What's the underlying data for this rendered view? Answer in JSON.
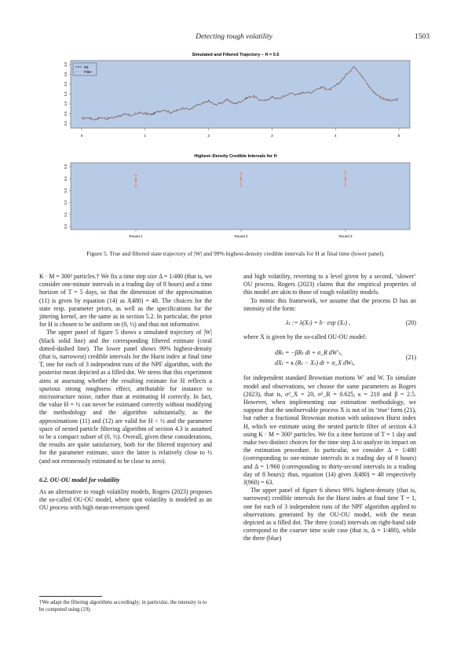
{
  "header": {
    "running_title": "Detecting rough volatility",
    "page_number": "1503"
  },
  "figure": {
    "top_panel": {
      "title": "Simulated and Filtered Trajectory – H = 0.5",
      "legend": [
        "Wt",
        "Filter"
      ],
      "x_ticks": [
        "0",
        "1",
        "2",
        "3",
        "4",
        "5"
      ],
      "y_ticks": [
        "0.0",
        "0.5",
        "1.0",
        "1.5",
        "2.0",
        "2.5",
        "3.0"
      ]
    },
    "bottom_panel": {
      "title": "Highest–Density Credible Intervals for H",
      "x_labels": [
        "Round 1",
        "Round 2",
        "Round 3"
      ],
      "y_ticks": [
        "0.0",
        "0.1",
        "0.2",
        "0.3",
        "0.4",
        "0.5"
      ]
    },
    "caption": "Figure 5.  True and filtered state trajectory of |W| and 99% highest-density credible intervals for H at final time (lower panel)."
  },
  "chart_data": [
    {
      "type": "line",
      "title": "Simulated and Filtered Trajectory – H = 0.5",
      "xlim": [
        0,
        5
      ],
      "ylim": [
        0,
        3
      ],
      "legend_position": "top-left",
      "series": [
        {
          "name": "Wt",
          "color": "#1a1a1a",
          "x": [
            0,
            0.1,
            0.2,
            0.3,
            0.4,
            0.5,
            0.6,
            0.7,
            0.8,
            0.9,
            1.0,
            1.1,
            1.2,
            1.3,
            1.4,
            1.5,
            1.6,
            1.7,
            1.8,
            1.9,
            2.0,
            2.1,
            2.2,
            2.3,
            2.4,
            2.5,
            2.6,
            2.7,
            2.8,
            2.9,
            3.0,
            3.1,
            3.2,
            3.3,
            3.4,
            3.5,
            3.6,
            3.7,
            3.8,
            3.9,
            4.0,
            4.1,
            4.2,
            4.3,
            4.4,
            4.5,
            4.6,
            4.7,
            4.8,
            4.9,
            5.0
          ],
          "y": [
            0.25,
            0.3,
            0.2,
            0.3,
            0.25,
            0.3,
            0.4,
            0.45,
            0.4,
            0.55,
            0.5,
            0.45,
            0.6,
            0.7,
            0.55,
            0.65,
            0.8,
            0.7,
            0.9,
            1.0,
            1.15,
            0.95,
            1.05,
            1.2,
            1.0,
            1.1,
            1.3,
            1.4,
            1.2,
            1.15,
            1.35,
            1.25,
            1.4,
            1.55,
            1.45,
            1.6,
            1.55,
            1.75,
            1.85,
            1.7,
            1.9,
            2.2,
            2.6,
            2.9,
            2.5,
            2.0,
            1.6,
            1.35,
            1.2,
            1.15,
            1.25
          ]
        },
        {
          "name": "Filter",
          "color": "#f07850",
          "x": [
            0,
            0.1,
            0.2,
            0.3,
            0.4,
            0.5,
            0.6,
            0.7,
            0.8,
            0.9,
            1.0,
            1.1,
            1.2,
            1.3,
            1.4,
            1.5,
            1.6,
            1.7,
            1.8,
            1.9,
            2.0,
            2.1,
            2.2,
            2.3,
            2.4,
            2.5,
            2.6,
            2.7,
            2.8,
            2.9,
            3.0,
            3.1,
            3.2,
            3.3,
            3.4,
            3.5,
            3.6,
            3.7,
            3.8,
            3.9,
            4.0,
            4.1,
            4.2,
            4.3,
            4.4,
            4.5,
            4.6,
            4.7,
            4.8,
            4.9,
            5.0
          ],
          "y": [
            0.26,
            0.29,
            0.22,
            0.29,
            0.26,
            0.31,
            0.39,
            0.44,
            0.41,
            0.53,
            0.5,
            0.46,
            0.59,
            0.68,
            0.57,
            0.65,
            0.78,
            0.72,
            0.88,
            0.99,
            1.12,
            0.97,
            1.05,
            1.18,
            1.02,
            1.1,
            1.28,
            1.37,
            1.22,
            1.17,
            1.33,
            1.27,
            1.4,
            1.52,
            1.46,
            1.58,
            1.56,
            1.72,
            1.82,
            1.72,
            1.9,
            2.18,
            2.55,
            2.85,
            2.52,
            2.03,
            1.63,
            1.38,
            1.22,
            1.17,
            1.24
          ]
        }
      ]
    },
    {
      "type": "scatter",
      "title": "Highest–Density Credible Intervals for H",
      "categories": [
        "Round 1",
        "Round 2",
        "Round 3"
      ],
      "ylim": [
        0,
        0.5
      ],
      "series": [
        {
          "color": "#f07850",
          "mean": [
            0.39,
            0.4,
            0.4
          ],
          "lower": [
            0.33,
            0.34,
            0.34
          ],
          "upper": [
            0.43,
            0.45,
            0.46
          ]
        }
      ]
    }
  ],
  "left_column": {
    "p1": "K · M = 300² particles.† We fix a time step size Δ = 1/480 (that is, we consider one-minute intervals in a trading day of 8 hours) and a time horizon of T = 5 days, so that the dimension of the approximation (11) is given by equation (14) as J(480) = 48. The choices for the state resp. parameter priors, as well as the specifications for the jittering kernel, are the same as in section 5.2. In particular, the prior for H is chosen to be uniform on (0, ½) and thus not informative.",
    "p2": "The upper panel of figure 5 shows a simulated trajectory of |W| (black solid line) and the corresponding filtered estimate (coral dotted-dashed line). The lower panel shows 99% highest-density (that is, narrowest) credible intervals for the Hurst index at final time T, one for each of 3 independent runs of the NPF algorithm, with the posterior mean depicted as a filled dot. We stress that this experiment aims at assessing whether the resulting estimate for H reflects a spurious strong roughness effect, attributable for instance to microstructure noise, rather than at estimating H correctly. In fact, the value H = ½ can never be estimated correctly without modifying the methodology and the algorithm substantially, as the approximations (11) and (12) are valid for H < ½ and the parameter space of nested particle filtering algorithm of section 4.3 is assumed to be a compact subset of (0, ½). Overall, given these considerations, the results are quite satisfactory, both for the filtered trajectory and for the parameter estimate, since the latter is relatively close to ½ (and not erroneously estimated to be close to zero).",
    "section_heading": "6.2.  OU-OU model for volatility",
    "p3": "As an alternative to rough volatility models, Rogers (2023) proposes the so-called OU-OU model, where spot volatility is modeled as an OU process with high mean-reversion speed"
  },
  "footnote": "†We adapt the filtering algorithms accordingly; in particular, the intensity is to be computed using (19).",
  "right_column": {
    "p1": "and high volatility, reverting to a level given by a second, ‘slower’ OU process. Rogers (2023) claims that the empirical properties of this model are akin to those of rough volatility models.",
    "p2": "To mimic this framework, we assume that the process D has an intensity of the form:",
    "eq20": "λₜ := λ(Xₜ) = b · exp (Xₜ) ,",
    "eq20_num": "(20)",
    "p3": "where X is given by the so-called OU-OU model:",
    "eq21_line1": "dRₜ = −βRₜ dt + σ_R dW′ₜ,",
    "eq21_line2": "dXₜ = κ (Rₜ − Xₜ) dt + σ_X dWₜ,",
    "eq21_num": "(21)",
    "p4": "for independent standard Brownian motions W′ and W. To simulate model and observations, we choose the same parameters as Rogers (2023), that is, σ²_X = 20, σ²_R = 0.625, κ = 210 and β = 2.5. However, when implementing our estimation methodology, we suppose that the unobservable process X is not of its ‘true’ form (21), but rather a fractional Brownian motion with unknown Hurst index H, which we estimate using the nested particle filter of section 4.3 using K · M = 300² particles. We fix a time horizon of T = 1 day and make two distinct choices for the time step Δ to analyze its impact on the estimation procedure. In particular, we consider Δ = 1/480 (corresponding to one-minute intervals in a trading day of 8 hours) and Δ = 1/960 (corresponding to thirty-second intervals in a trading day of 8 hours); thus, equation (14) gives J(480) = 48 respectively J(960) = 63.",
    "p5": "The upper panel of figure 6 shows 99% highest-density (that is, narrowest) credible intervals for the Hurst index at final time T = 1, one for each of 3 independent runs of the NPF algorithm applied to observations generated by the OU-OU model, with the mean depicted as a filled dot. The three (coral) intervals on right-hand side correspond to the coarser time scale case (that is, Δ = 1/480), while the three (blue)"
  }
}
